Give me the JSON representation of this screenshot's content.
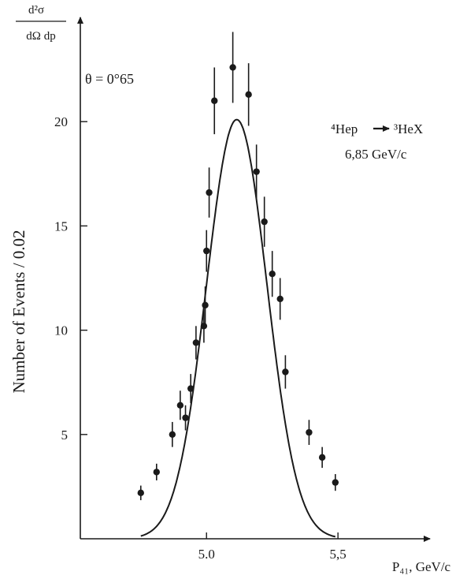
{
  "chart_data": {
    "type": "scatter",
    "title": "",
    "ylabel_fraction": {
      "numerator": "d²σ",
      "denominator": "dΩ dp"
    },
    "ylabel": "Number of Events / 0.02",
    "xlabel": "P₄₁, GeV/c",
    "annotation_angle": "θ = 0°65",
    "reaction": {
      "initial": "⁴Hep",
      "final": "³HeX"
    },
    "beam_momentum": "6,85 GeV/c",
    "xlim": [
      4.52,
      5.85
    ],
    "ylim": [
      0,
      25
    ],
    "xticks": [
      {
        "value": 5.0,
        "label": "5.0"
      },
      {
        "value": 5.5,
        "label": "5,5"
      }
    ],
    "yticks": [
      {
        "value": 5,
        "label": "5"
      },
      {
        "value": 10,
        "label": "10"
      },
      {
        "value": 15,
        "label": "15"
      },
      {
        "value": 20,
        "label": "20"
      }
    ],
    "grid": false,
    "legend": "none",
    "points": [
      {
        "x": 4.75,
        "y": 2.2,
        "err": 0.35
      },
      {
        "x": 4.81,
        "y": 3.2,
        "err": 0.4
      },
      {
        "x": 4.87,
        "y": 5.0,
        "err": 0.6
      },
      {
        "x": 4.9,
        "y": 6.4,
        "err": 0.7
      },
      {
        "x": 4.92,
        "y": 5.8,
        "err": 0.6
      },
      {
        "x": 4.94,
        "y": 7.2,
        "err": 0.7
      },
      {
        "x": 4.96,
        "y": 9.4,
        "err": 0.8
      },
      {
        "x": 4.99,
        "y": 10.2,
        "err": 0.8
      },
      {
        "x": 4.995,
        "y": 11.2,
        "err": 0.9
      },
      {
        "x": 5.0,
        "y": 13.8,
        "err": 1.0
      },
      {
        "x": 5.01,
        "y": 16.6,
        "err": 1.2
      },
      {
        "x": 5.03,
        "y": 21.0,
        "err": 1.6
      },
      {
        "x": 5.1,
        "y": 22.6,
        "err": 1.7
      },
      {
        "x": 5.16,
        "y": 21.3,
        "err": 1.5
      },
      {
        "x": 5.19,
        "y": 17.6,
        "err": 1.3
      },
      {
        "x": 5.22,
        "y": 15.2,
        "err": 1.2
      },
      {
        "x": 5.25,
        "y": 12.7,
        "err": 1.1
      },
      {
        "x": 5.28,
        "y": 11.5,
        "err": 1.0
      },
      {
        "x": 5.3,
        "y": 8.0,
        "err": 0.8
      },
      {
        "x": 5.39,
        "y": 5.1,
        "err": 0.6
      },
      {
        "x": 5.44,
        "y": 3.9,
        "err": 0.5
      },
      {
        "x": 5.49,
        "y": 2.7,
        "err": 0.4
      }
    ],
    "fit": {
      "type": "gaussian",
      "mean": 5.115,
      "sigma": 0.115,
      "amplitude": 20.1
    },
    "fit_xrange": [
      4.75,
      5.49
    ]
  }
}
